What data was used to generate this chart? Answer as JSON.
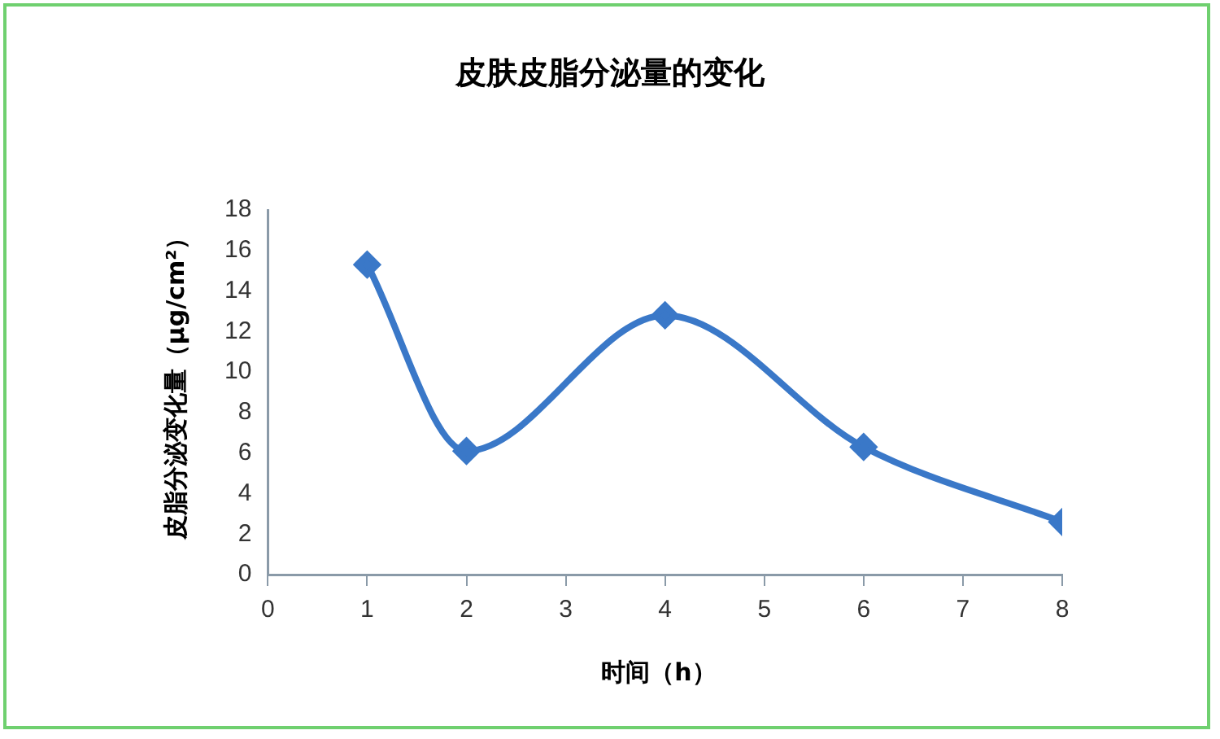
{
  "chart_data": {
    "type": "line",
    "title": "皮肤皮脂分泌量的变化",
    "xlabel": "时间（h）",
    "ylabel": "皮脂分泌变化量（μg/cm²）",
    "x": [
      1,
      2,
      4,
      6,
      8
    ],
    "series": [
      {
        "color": "#3a78c8",
        "values": [
          15.3,
          6.1,
          12.8,
          6.3,
          2.6
        ]
      }
    ],
    "xlim": [
      0,
      8
    ],
    "xticks": [
      0,
      1,
      2,
      3,
      4,
      5,
      6,
      7,
      8
    ],
    "ylim": [
      0,
      18
    ],
    "yticks": [
      0,
      2,
      4,
      6,
      8,
      10,
      12,
      14,
      16,
      18
    ],
    "grid": false,
    "legend": false,
    "marker": "diamond",
    "line_style": "solid"
  }
}
